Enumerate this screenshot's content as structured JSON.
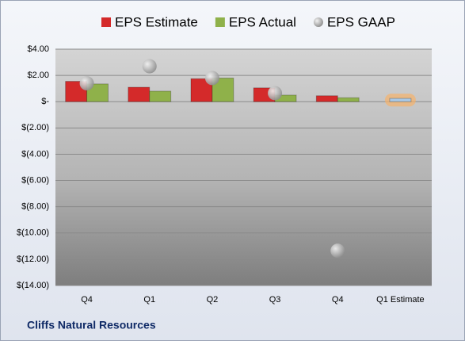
{
  "chart_data": {
    "type": "bar",
    "footer": "Cliffs Natural Resources",
    "categories": [
      "Q4",
      "Q1",
      "Q2",
      "Q3",
      "Q4",
      "Q1 Estimate"
    ],
    "series": [
      {
        "name": "EPS Estimate",
        "kind": "bar",
        "color": "#d42a2a",
        "colors": [
          "#d42a2a",
          "#d42a2a",
          "#d42a2a",
          "#d42a2a",
          "#d42a2a",
          "#a9c9e8"
        ],
        "values": [
          1.55,
          1.1,
          1.75,
          1.05,
          0.45,
          0.25
        ]
      },
      {
        "name": "EPS Actual",
        "kind": "bar",
        "color": "#8fb14a",
        "values": [
          1.35,
          0.8,
          1.8,
          0.5,
          0.3,
          null
        ]
      },
      {
        "name": "EPS GAAP",
        "kind": "marker",
        "color": "#b8b8b8",
        "values": [
          1.4,
          2.7,
          1.8,
          0.65,
          -11.35,
          null
        ]
      }
    ],
    "ylim": [
      -14,
      4
    ],
    "yticks": [
      {
        "value": 4,
        "label": "$4.00"
      },
      {
        "value": 2,
        "label": "$2.00"
      },
      {
        "value": 0,
        "label": "$-"
      },
      {
        "value": -2,
        "label": "$(2.00)"
      },
      {
        "value": -4,
        "label": "$(4.00)"
      },
      {
        "value": -6,
        "label": "$(6.00)"
      },
      {
        "value": -8,
        "label": "$(8.00)"
      },
      {
        "value": -10,
        "label": "$(10.00)"
      },
      {
        "value": -12,
        "label": "$(12.00)"
      },
      {
        "value": -14,
        "label": "$(14.00)"
      }
    ],
    "grid": true
  }
}
